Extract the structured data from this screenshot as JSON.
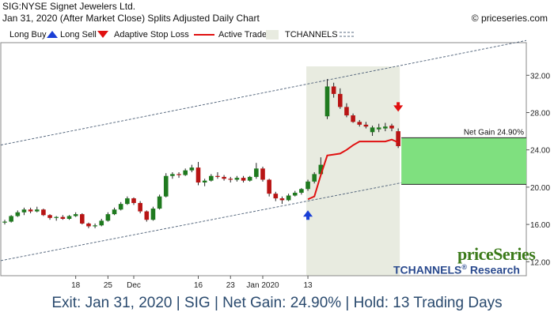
{
  "header": {
    "title": "SIG:NYSE Signet Jewelers Ltd.",
    "subtitle": "Jan 31, 2020 (After Market Close)  Splits Adjusted Daily Chart",
    "copyright": "© priceseries.com"
  },
  "legend": {
    "long_buy": "Long Buy",
    "long_sell": "Long Sell",
    "adaptive_stop_loss": "Adaptive Stop Loss",
    "active_trade": "Active Trade",
    "tchannels": "TCHANNELS"
  },
  "colors": {
    "up_candle": "#1f7a1f",
    "down_candle": "#b81414",
    "stop_loss": "#e01010",
    "active_trade_band": "#e8ebe0",
    "channel": "#5a6b80",
    "net_gain_fill": "#7fe07f",
    "buy_arrow": "#1a3fd6",
    "sell_arrow": "#e01010"
  },
  "brand": {
    "name": "priceSeries",
    "research": "TCHANNELS",
    "research_suffix": "Research",
    "registered": "®"
  },
  "footer": {
    "text": "Exit: Jan 31, 2020 | SIG | Net Gain: 24.90% | Hold: 13 Trading Days"
  },
  "chart_data": {
    "type": "candlestick",
    "ylim": [
      10.5,
      35.5
    ],
    "yticks": [
      "12.00",
      "16.00",
      "20.00",
      "24.00",
      "28.00",
      "32.00"
    ],
    "xtick_labels": [
      {
        "index": 11,
        "label": "18"
      },
      {
        "index": 16,
        "label": "25"
      },
      {
        "index": 20,
        "label": "Dec"
      },
      {
        "index": 30,
        "label": "16"
      },
      {
        "index": 35,
        "label": "23"
      },
      {
        "index": 40,
        "label": "Jan 2020"
      },
      {
        "index": 47,
        "label": "13"
      }
    ],
    "candles": [
      {
        "o": 16.2,
        "h": 16.5,
        "l": 16.0,
        "c": 16.3
      },
      {
        "o": 16.3,
        "h": 17.0,
        "l": 16.2,
        "c": 16.9
      },
      {
        "o": 16.9,
        "h": 17.5,
        "l": 16.8,
        "c": 17.3
      },
      {
        "o": 17.3,
        "h": 17.8,
        "l": 17.0,
        "c": 17.6
      },
      {
        "o": 17.6,
        "h": 17.8,
        "l": 17.2,
        "c": 17.4
      },
      {
        "o": 17.4,
        "h": 17.9,
        "l": 17.3,
        "c": 17.6
      },
      {
        "o": 17.6,
        "h": 17.7,
        "l": 16.9,
        "c": 17.0
      },
      {
        "o": 17.0,
        "h": 17.1,
        "l": 16.5,
        "c": 16.7
      },
      {
        "o": 16.7,
        "h": 16.9,
        "l": 16.4,
        "c": 16.8
      },
      {
        "o": 16.8,
        "h": 17.0,
        "l": 16.5,
        "c": 16.6
      },
      {
        "o": 16.6,
        "h": 17.0,
        "l": 16.5,
        "c": 16.9
      },
      {
        "o": 16.9,
        "h": 17.3,
        "l": 16.8,
        "c": 17.1
      },
      {
        "o": 17.1,
        "h": 17.2,
        "l": 16.0,
        "c": 16.1
      },
      {
        "o": 16.1,
        "h": 16.2,
        "l": 15.6,
        "c": 15.8
      },
      {
        "o": 15.8,
        "h": 16.1,
        "l": 15.6,
        "c": 15.9
      },
      {
        "o": 15.9,
        "h": 16.6,
        "l": 15.8,
        "c": 16.4
      },
      {
        "o": 16.4,
        "h": 17.3,
        "l": 16.3,
        "c": 17.1
      },
      {
        "o": 17.1,
        "h": 17.8,
        "l": 17.0,
        "c": 17.6
      },
      {
        "o": 17.6,
        "h": 18.4,
        "l": 17.5,
        "c": 18.2
      },
      {
        "o": 18.2,
        "h": 19.0,
        "l": 18.1,
        "c": 18.8
      },
      {
        "o": 18.8,
        "h": 18.9,
        "l": 18.1,
        "c": 18.3
      },
      {
        "o": 18.3,
        "h": 18.5,
        "l": 17.2,
        "c": 17.4
      },
      {
        "o": 17.4,
        "h": 17.5,
        "l": 16.3,
        "c": 16.5
      },
      {
        "o": 16.5,
        "h": 17.9,
        "l": 16.4,
        "c": 17.7
      },
      {
        "o": 17.7,
        "h": 19.2,
        "l": 17.6,
        "c": 19.0
      },
      {
        "o": 19.0,
        "h": 21.5,
        "l": 18.9,
        "c": 21.2
      },
      {
        "o": 21.2,
        "h": 21.6,
        "l": 20.9,
        "c": 21.4
      },
      {
        "o": 21.4,
        "h": 21.6,
        "l": 21.0,
        "c": 21.3
      },
      {
        "o": 21.3,
        "h": 22.0,
        "l": 21.2,
        "c": 21.8
      },
      {
        "o": 21.8,
        "h": 22.4,
        "l": 21.6,
        "c": 22.1
      },
      {
        "o": 22.1,
        "h": 22.7,
        "l": 20.2,
        "c": 20.5
      },
      {
        "o": 20.5,
        "h": 20.9,
        "l": 20.1,
        "c": 20.7
      },
      {
        "o": 20.7,
        "h": 21.4,
        "l": 20.6,
        "c": 21.2
      },
      {
        "o": 21.2,
        "h": 21.6,
        "l": 20.9,
        "c": 21.1
      },
      {
        "o": 21.1,
        "h": 21.3,
        "l": 20.7,
        "c": 20.9
      },
      {
        "o": 20.9,
        "h": 21.1,
        "l": 20.5,
        "c": 20.8
      },
      {
        "o": 20.8,
        "h": 21.2,
        "l": 20.6,
        "c": 21.0
      },
      {
        "o": 21.0,
        "h": 21.2,
        "l": 20.5,
        "c": 20.7
      },
      {
        "o": 20.7,
        "h": 21.2,
        "l": 20.6,
        "c": 21.1
      },
      {
        "o": 21.1,
        "h": 22.6,
        "l": 20.9,
        "c": 22.0
      },
      {
        "o": 22.0,
        "h": 22.2,
        "l": 20.6,
        "c": 20.8
      },
      {
        "o": 20.8,
        "h": 20.9,
        "l": 19.0,
        "c": 19.3
      },
      {
        "o": 19.3,
        "h": 19.5,
        "l": 18.5,
        "c": 18.8
      },
      {
        "o": 18.8,
        "h": 19.0,
        "l": 18.2,
        "c": 18.6
      },
      {
        "o": 18.6,
        "h": 19.3,
        "l": 18.5,
        "c": 19.1
      },
      {
        "o": 19.1,
        "h": 19.6,
        "l": 19.0,
        "c": 19.4
      },
      {
        "o": 19.4,
        "h": 19.9,
        "l": 19.2,
        "c": 19.8
      },
      {
        "o": 19.8,
        "h": 20.8,
        "l": 19.6,
        "c": 20.6
      },
      {
        "o": 20.6,
        "h": 21.6,
        "l": 20.4,
        "c": 21.4
      },
      {
        "o": 21.4,
        "h": 23.2,
        "l": 21.2,
        "c": 22.4
      },
      {
        "o": 27.6,
        "h": 31.6,
        "l": 27.3,
        "c": 30.8
      },
      {
        "o": 30.8,
        "h": 31.2,
        "l": 29.6,
        "c": 30.0
      },
      {
        "o": 30.0,
        "h": 30.6,
        "l": 28.4,
        "c": 28.6
      },
      {
        "o": 28.6,
        "h": 29.0,
        "l": 27.5,
        "c": 27.7
      },
      {
        "o": 27.7,
        "h": 27.9,
        "l": 26.9,
        "c": 27.0
      },
      {
        "o": 27.0,
        "h": 27.2,
        "l": 26.5,
        "c": 26.7
      },
      {
        "o": 26.7,
        "h": 27.0,
        "l": 26.3,
        "c": 26.5
      },
      {
        "o": 25.9,
        "h": 26.6,
        "l": 25.5,
        "c": 26.4
      },
      {
        "o": 26.2,
        "h": 26.8,
        "l": 25.9,
        "c": 26.4
      },
      {
        "o": 26.3,
        "h": 26.9,
        "l": 26.0,
        "c": 26.5
      },
      {
        "o": 26.6,
        "h": 26.8,
        "l": 26.0,
        "c": 26.3
      },
      {
        "o": 26.0,
        "h": 26.3,
        "l": 24.2,
        "c": 24.4
      }
    ],
    "stop_loss": [
      {
        "i": 47,
        "v": 18.7
      },
      {
        "i": 48,
        "v": 19.0
      },
      {
        "i": 49,
        "v": 21.3
      },
      {
        "i": 50,
        "v": 23.4
      },
      {
        "i": 51,
        "v": 23.5
      },
      {
        "i": 52,
        "v": 23.6
      },
      {
        "i": 53,
        "v": 24.0
      },
      {
        "i": 54,
        "v": 24.5
      },
      {
        "i": 55,
        "v": 24.9
      },
      {
        "i": 56,
        "v": 24.9
      },
      {
        "i": 57,
        "v": 24.9
      },
      {
        "i": 58,
        "v": 24.9
      },
      {
        "i": 59,
        "v": 24.9
      },
      {
        "i": 60,
        "v": 25.1
      },
      {
        "i": 61,
        "v": 24.8
      }
    ],
    "channel_upper": {
      "start": {
        "i": 0,
        "v": 24.6
      },
      "end": {
        "i": 61,
        "v": 33.0
      }
    },
    "channel_lower": {
      "start": {
        "i": 0,
        "v": 12.2
      },
      "end": {
        "i": 61,
        "v": 20.4
      }
    },
    "active_trade_range": {
      "start": 47,
      "end": 61
    },
    "buy_signal": {
      "i": 47,
      "v": 17.0
    },
    "sell_signal": {
      "i": 61,
      "v": 28.6
    },
    "net_gain": {
      "label": "Net Gain 24.90%",
      "top": 25.3,
      "bottom": 20.3
    }
  }
}
